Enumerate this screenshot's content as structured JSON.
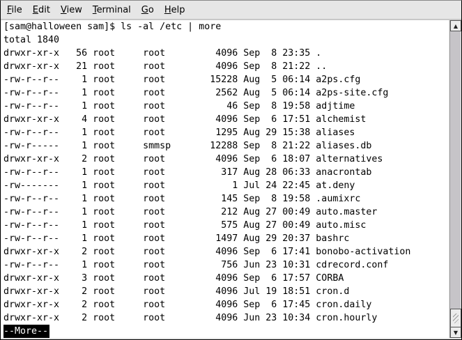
{
  "menu": [
    {
      "label": "File",
      "key": "F"
    },
    {
      "label": "Edit",
      "key": "E"
    },
    {
      "label": "View",
      "key": "V"
    },
    {
      "label": "Terminal",
      "key": "T"
    },
    {
      "label": "Go",
      "key": "G"
    },
    {
      "label": "Help",
      "key": "H"
    }
  ],
  "terminal": {
    "lines": [
      "[sam@halloween sam]$ ls -al /etc | more",
      "total 1840",
      "drwxr-xr-x   56 root     root         4096 Sep  8 23:35 .",
      "drwxr-xr-x   21 root     root         4096 Sep  8 21:22 ..",
      "-rw-r--r--    1 root     root        15228 Aug  5 06:14 a2ps.cfg",
      "-rw-r--r--    1 root     root         2562 Aug  5 06:14 a2ps-site.cfg",
      "-rw-r--r--    1 root     root           46 Sep  8 19:58 adjtime",
      "drwxr-xr-x    4 root     root         4096 Sep  6 17:51 alchemist",
      "-rw-r--r--    1 root     root         1295 Aug 29 15:38 aliases",
      "-rw-r-----    1 root     smmsp       12288 Sep  8 21:22 aliases.db",
      "drwxr-xr-x    2 root     root         4096 Sep  6 18:07 alternatives",
      "-rw-r--r--    1 root     root          317 Aug 28 06:33 anacrontab",
      "-rw-------    1 root     root            1 Jul 24 22:45 at.deny",
      "-rw-r--r--    1 root     root          145 Sep  8 19:58 .aumixrc",
      "-rw-r--r--    1 root     root          212 Aug 27 00:49 auto.master",
      "-rw-r--r--    1 root     root          575 Aug 27 00:49 auto.misc",
      "-rw-r--r--    1 root     root         1497 Aug 29 20:37 bashrc",
      "drwxr-xr-x    2 root     root         4096 Sep  6 17:41 bonobo-activation",
      "-rw-r--r--    1 root     root          756 Jun 23 10:31 cdrecord.conf",
      "drwxr-xr-x    3 root     root         4096 Sep  6 17:57 CORBA",
      "drwxr-xr-x    2 root     root         4096 Jul 19 18:51 cron.d",
      "drwxr-xr-x    2 root     root         4096 Sep  6 17:45 cron.daily",
      "drwxr-xr-x    2 root     root         4096 Jun 23 10:34 cron.hourly"
    ],
    "pager_prompt": "--More--"
  },
  "scrollbar": {
    "position_percent": 95
  }
}
